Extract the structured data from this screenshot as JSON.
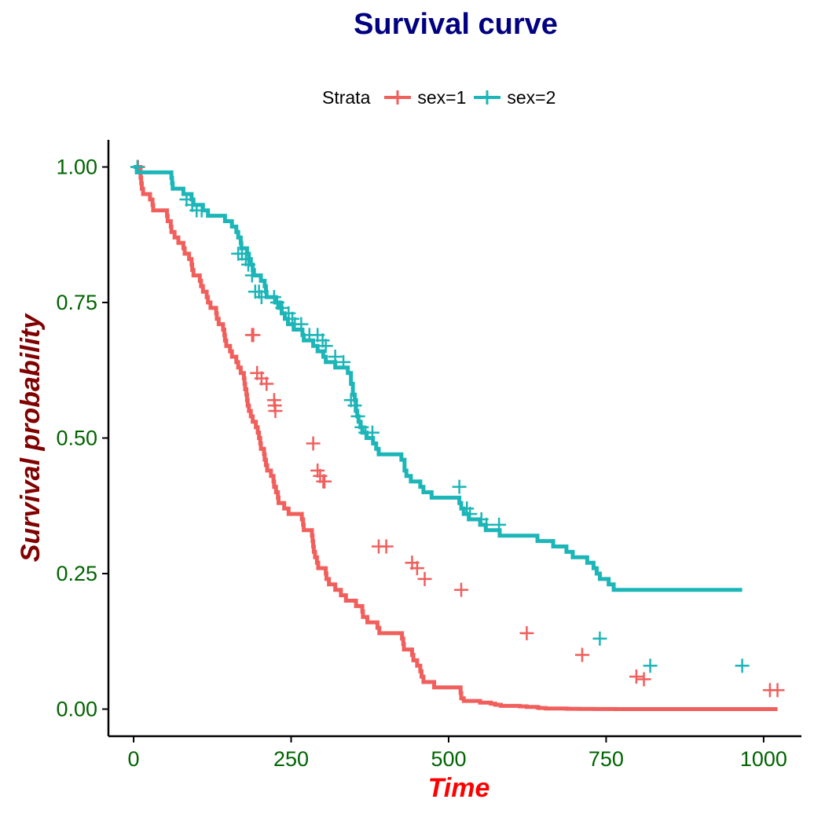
{
  "chart_data": {
    "type": "line",
    "subtype": "kaplan-meier step",
    "title": "Survival curve",
    "xlabel": "Time",
    "ylabel": "Survival probability",
    "xlim": [
      -40,
      1060
    ],
    "ylim": [
      -0.05,
      1.05
    ],
    "xticks": [
      0,
      250,
      500,
      750,
      1000
    ],
    "xtick_labels": [
      "0",
      "250",
      "500",
      "750",
      "1000"
    ],
    "yticks": [
      0,
      0.25,
      0.5,
      0.75,
      1.0
    ],
    "ytick_labels": [
      "0.00",
      "0.25",
      "0.50",
      "0.75",
      "1.00"
    ],
    "grid": false,
    "legend": {
      "title": "Strata",
      "position": "top"
    },
    "colors": {
      "title": "#000080",
      "xlabel": "#ff0000",
      "ylabel": "#800000",
      "ticks": "#006400"
    },
    "series": [
      {
        "name": "sex=1",
        "color": "#f05f5c",
        "steps": [
          [
            0,
            1.0
          ],
          [
            11,
            0.98
          ],
          [
            12,
            0.97
          ],
          [
            13,
            0.96
          ],
          [
            15,
            0.95
          ],
          [
            26,
            0.94
          ],
          [
            30,
            0.93
          ],
          [
            31,
            0.92
          ],
          [
            53,
            0.91
          ],
          [
            54,
            0.9
          ],
          [
            59,
            0.89
          ],
          [
            60,
            0.88
          ],
          [
            65,
            0.87
          ],
          [
            71,
            0.86
          ],
          [
            79,
            0.85
          ],
          [
            81,
            0.84
          ],
          [
            88,
            0.83
          ],
          [
            92,
            0.82
          ],
          [
            93,
            0.81
          ],
          [
            95,
            0.8
          ],
          [
            105,
            0.79
          ],
          [
            107,
            0.78
          ],
          [
            110,
            0.77
          ],
          [
            116,
            0.76
          ],
          [
            118,
            0.75
          ],
          [
            122,
            0.74
          ],
          [
            131,
            0.73
          ],
          [
            132,
            0.72
          ],
          [
            135,
            0.71
          ],
          [
            142,
            0.7
          ],
          [
            144,
            0.69
          ],
          [
            145,
            0.68
          ],
          [
            147,
            0.67
          ],
          [
            153,
            0.66
          ],
          [
            156,
            0.65
          ],
          [
            163,
            0.64
          ],
          [
            166,
            0.63
          ],
          [
            170,
            0.62
          ],
          [
            175,
            0.61
          ],
          [
            176,
            0.6
          ],
          [
            177,
            0.59
          ],
          [
            179,
            0.58
          ],
          [
            180,
            0.57
          ],
          [
            181,
            0.56
          ],
          [
            183,
            0.55
          ],
          [
            186,
            0.54
          ],
          [
            189,
            0.53
          ],
          [
            194,
            0.52
          ],
          [
            197,
            0.51
          ],
          [
            199,
            0.5
          ],
          [
            201,
            0.49
          ],
          [
            202,
            0.48
          ],
          [
            207,
            0.47
          ],
          [
            208,
            0.46
          ],
          [
            210,
            0.45
          ],
          [
            212,
            0.44
          ],
          [
            218,
            0.43
          ],
          [
            222,
            0.42
          ],
          [
            223,
            0.41
          ],
          [
            226,
            0.4
          ],
          [
            229,
            0.39
          ],
          [
            230,
            0.38
          ],
          [
            239,
            0.37
          ],
          [
            246,
            0.36
          ],
          [
            267,
            0.35
          ],
          [
            269,
            0.34
          ],
          [
            270,
            0.33
          ],
          [
            283,
            0.32
          ],
          [
            284,
            0.31
          ],
          [
            285,
            0.3
          ],
          [
            286,
            0.29
          ],
          [
            288,
            0.28
          ],
          [
            291,
            0.27
          ],
          [
            293,
            0.26
          ],
          [
            305,
            0.25
          ],
          [
            306,
            0.24
          ],
          [
            310,
            0.23
          ],
          [
            320,
            0.22
          ],
          [
            329,
            0.21
          ],
          [
            337,
            0.2
          ],
          [
            353,
            0.19
          ],
          [
            363,
            0.18
          ],
          [
            364,
            0.17
          ],
          [
            371,
            0.16
          ],
          [
            387,
            0.15
          ],
          [
            390,
            0.14
          ],
          [
            426,
            0.13
          ],
          [
            428,
            0.12
          ],
          [
            429,
            0.11
          ],
          [
            442,
            0.1
          ],
          [
            444,
            0.09
          ],
          [
            450,
            0.08
          ],
          [
            455,
            0.07
          ],
          [
            457,
            0.06
          ],
          [
            460,
            0.05
          ],
          [
            477,
            0.04
          ],
          [
            519,
            0.03
          ],
          [
            520,
            0.02
          ],
          [
            524,
            0.015
          ],
          [
            550,
            0.012
          ],
          [
            567,
            0.01
          ],
          [
            574,
            0.008
          ],
          [
            583,
            0.006
          ],
          [
            613,
            0.005
          ],
          [
            624,
            0.004
          ],
          [
            641,
            0.003
          ],
          [
            643,
            0.002
          ],
          [
            654,
            0.0015
          ],
          [
            655,
            0.001
          ],
          [
            687,
            0.0008
          ],
          [
            689,
            0.0006
          ],
          [
            705,
            0.0005
          ],
          [
            707,
            0.0004
          ],
          [
            728,
            0.0003
          ],
          [
            731,
            0.0002
          ],
          [
            735,
            0.0001
          ],
          [
            765,
            0.0
          ],
          [
            791,
            0.0
          ],
          [
            814,
            0.0
          ],
          [
            883,
            0.0
          ],
          [
            1022,
            0.0
          ]
        ],
        "censored": [
          [
            7,
            1.0
          ],
          [
            188,
            0.69
          ],
          [
            190,
            0.69
          ],
          [
            196,
            0.62
          ],
          [
            203,
            0.61
          ],
          [
            211,
            0.6
          ],
          [
            223,
            0.57
          ],
          [
            224,
            0.56
          ],
          [
            225,
            0.55
          ],
          [
            285,
            0.49
          ],
          [
            292,
            0.44
          ],
          [
            296,
            0.43
          ],
          [
            301,
            0.42
          ],
          [
            303,
            0.42
          ],
          [
            389,
            0.3
          ],
          [
            401,
            0.3
          ],
          [
            442,
            0.27
          ],
          [
            450,
            0.26
          ],
          [
            462,
            0.24
          ],
          [
            520,
            0.22
          ],
          [
            624,
            0.14
          ],
          [
            712,
            0.1
          ],
          [
            798,
            0.06
          ],
          [
            810,
            0.055
          ],
          [
            1010,
            0.035
          ],
          [
            1022,
            0.035
          ]
        ]
      },
      {
        "name": "sex=2",
        "color": "#1cb5b8",
        "steps": [
          [
            0,
            1.0
          ],
          [
            5,
            0.99
          ],
          [
            60,
            0.98
          ],
          [
            61,
            0.97
          ],
          [
            62,
            0.96
          ],
          [
            79,
            0.95
          ],
          [
            92,
            0.94
          ],
          [
            95,
            0.93
          ],
          [
            110,
            0.92
          ],
          [
            118,
            0.91
          ],
          [
            145,
            0.9
          ],
          [
            156,
            0.89
          ],
          [
            163,
            0.88
          ],
          [
            166,
            0.87
          ],
          [
            170,
            0.86
          ],
          [
            171,
            0.85
          ],
          [
            180,
            0.84
          ],
          [
            183,
            0.83
          ],
          [
            186,
            0.82
          ],
          [
            189,
            0.81
          ],
          [
            191,
            0.8
          ],
          [
            202,
            0.79
          ],
          [
            208,
            0.78
          ],
          [
            210,
            0.77
          ],
          [
            211,
            0.76
          ],
          [
            225,
            0.75
          ],
          [
            232,
            0.74
          ],
          [
            235,
            0.73
          ],
          [
            240,
            0.72
          ],
          [
            245,
            0.71
          ],
          [
            254,
            0.7
          ],
          [
            268,
            0.69
          ],
          [
            270,
            0.68
          ],
          [
            285,
            0.67
          ],
          [
            292,
            0.66
          ],
          [
            301,
            0.65
          ],
          [
            305,
            0.64
          ],
          [
            320,
            0.63
          ],
          [
            340,
            0.62
          ],
          [
            345,
            0.6
          ],
          [
            348,
            0.58
          ],
          [
            351,
            0.57
          ],
          [
            353,
            0.55
          ],
          [
            355,
            0.54
          ],
          [
            357,
            0.53
          ],
          [
            360,
            0.52
          ],
          [
            363,
            0.51
          ],
          [
            370,
            0.5
          ],
          [
            380,
            0.49
          ],
          [
            385,
            0.48
          ],
          [
            389,
            0.47
          ],
          [
            425,
            0.46
          ],
          [
            430,
            0.44
          ],
          [
            433,
            0.43
          ],
          [
            440,
            0.42
          ],
          [
            455,
            0.41
          ],
          [
            460,
            0.4
          ],
          [
            473,
            0.39
          ],
          [
            517,
            0.38
          ],
          [
            520,
            0.37
          ],
          [
            524,
            0.36
          ],
          [
            532,
            0.35
          ],
          [
            550,
            0.34
          ],
          [
            559,
            0.33
          ],
          [
            581,
            0.32
          ],
          [
            641,
            0.31
          ],
          [
            666,
            0.3
          ],
          [
            687,
            0.29
          ],
          [
            697,
            0.28
          ],
          [
            720,
            0.27
          ],
          [
            730,
            0.26
          ],
          [
            735,
            0.25
          ],
          [
            740,
            0.24
          ],
          [
            754,
            0.23
          ],
          [
            762,
            0.22
          ]
        ],
        "censored": [
          [
            6,
            1.0
          ],
          [
            84,
            0.94
          ],
          [
            93,
            0.93
          ],
          [
            100,
            0.92
          ],
          [
            108,
            0.92
          ],
          [
            166,
            0.84
          ],
          [
            172,
            0.84
          ],
          [
            178,
            0.83
          ],
          [
            182,
            0.82
          ],
          [
            188,
            0.8
          ],
          [
            193,
            0.77
          ],
          [
            199,
            0.77
          ],
          [
            203,
            0.76
          ],
          [
            223,
            0.76
          ],
          [
            228,
            0.75
          ],
          [
            236,
            0.74
          ],
          [
            246,
            0.73
          ],
          [
            252,
            0.72
          ],
          [
            256,
            0.71
          ],
          [
            266,
            0.71
          ],
          [
            279,
            0.69
          ],
          [
            292,
            0.69
          ],
          [
            300,
            0.68
          ],
          [
            305,
            0.67
          ],
          [
            320,
            0.65
          ],
          [
            333,
            0.64
          ],
          [
            345,
            0.57
          ],
          [
            351,
            0.56
          ],
          [
            356,
            0.54
          ],
          [
            362,
            0.52
          ],
          [
            368,
            0.51
          ],
          [
            379,
            0.51
          ],
          [
            517,
            0.41
          ],
          [
            529,
            0.37
          ],
          [
            534,
            0.36
          ],
          [
            552,
            0.35
          ],
          [
            560,
            0.34
          ],
          [
            580,
            0.34
          ],
          [
            740,
            0.13
          ],
          [
            820,
            0.08
          ],
          [
            966,
            0.08
          ]
        ]
      }
    ]
  }
}
